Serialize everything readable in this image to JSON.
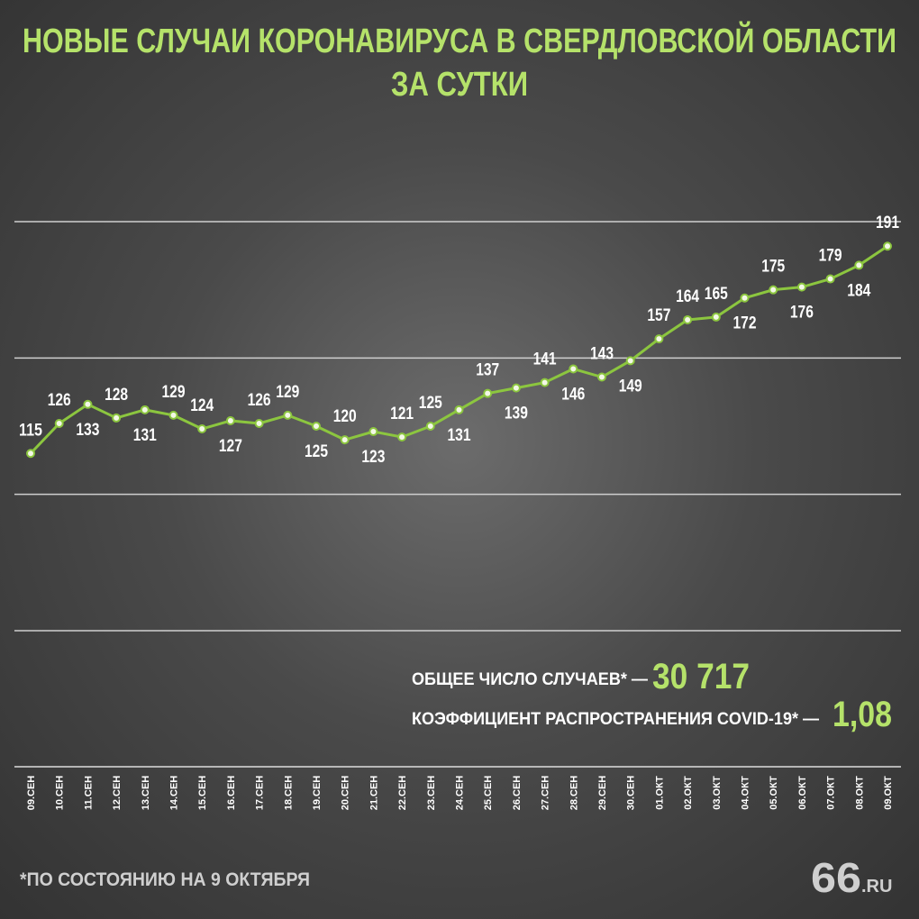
{
  "chart_data": {
    "type": "line",
    "title": [
      "НОВЫЕ СЛУЧАИ КОРОНАВИРУСА В СВЕРДЛОВСКОЙ ОБЛАСТИ",
      "ЗА СУТКИ"
    ],
    "categories": [
      "09.СЕН",
      "10.СЕН",
      "11.СЕН",
      "12.СЕН",
      "13.СЕН",
      "14.СЕН",
      "15.СЕН",
      "16.СЕН",
      "17.СЕН",
      "18.СЕН",
      "19.СЕН",
      "20.СЕН",
      "21.СЕН",
      "22.СЕН",
      "23.СЕН",
      "24.СЕН",
      "25.СЕН",
      "26.СЕН",
      "27.СЕН",
      "28.СЕН",
      "29.СЕН",
      "30.СЕН",
      "01.ОКТ",
      "02.ОКТ",
      "03.ОКТ",
      "04.ОКТ",
      "05.ОКТ",
      "06.ОКТ",
      "07.ОКТ",
      "08.ОКТ",
      "09.ОКТ"
    ],
    "values": [
      115,
      126,
      133,
      128,
      131,
      129,
      124,
      127,
      126,
      129,
      125,
      120,
      123,
      121,
      125,
      131,
      137,
      139,
      141,
      146,
      143,
      149,
      157,
      164,
      165,
      172,
      175,
      176,
      179,
      184,
      191
    ],
    "color": "#8cc63f",
    "ylim": [
      50,
      200
    ],
    "yticks": [
      50,
      100,
      150,
      200
    ],
    "grid": true,
    "annotations": {
      "total_label": "ОБЩЕЕ ЧИСЛО СЛУЧАЕВ* —",
      "total_value": "30 717",
      "rate_label": "КОЭФФИЦИЕНТ РАСПРОСТРАНЕНИЯ COVID-19* —",
      "rate_value": "1,08",
      "footnote": "*ПО СОСТОЯНИЮ НА 9 ОКТЯБРЯ",
      "logo_number": "66",
      "logo_domain": ".RU"
    }
  }
}
